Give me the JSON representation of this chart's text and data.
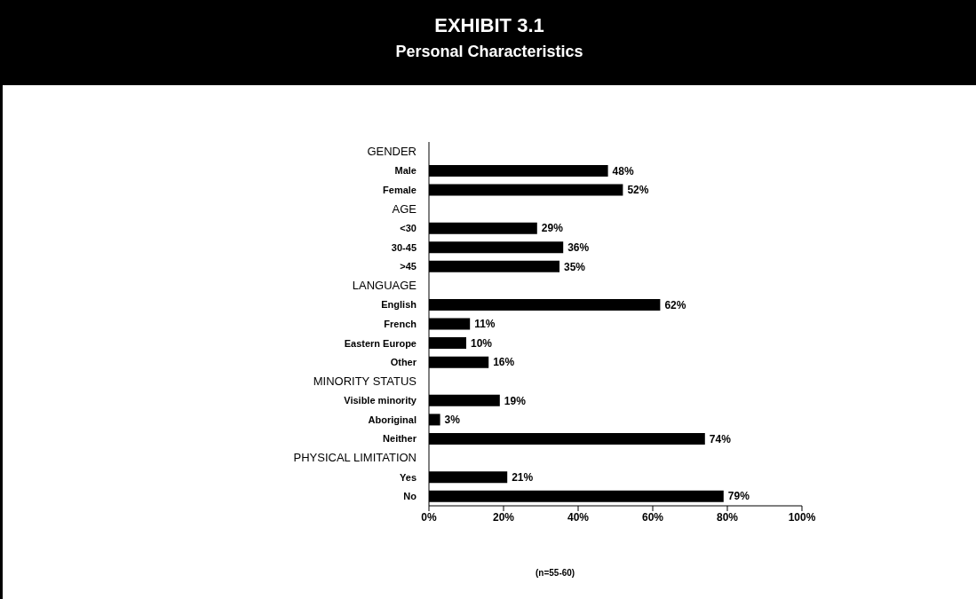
{
  "chart_data": {
    "type": "bar",
    "orientation": "horizontal",
    "title": "EXHIBIT 3.1",
    "subtitle": "Personal Characteristics",
    "categories": [
      "GENDER",
      "Male",
      "Female",
      "AGE",
      "<30",
      "30-45",
      ">45",
      "LANGUAGE",
      "English",
      "French",
      "Eastern Europe",
      "Other",
      "MINORITY STATUS",
      "Visible minority",
      "Aboriginal",
      "Neither",
      "PHYSICAL LIMITATION",
      "Yes",
      "No"
    ],
    "values": [
      null,
      48,
      52,
      null,
      29,
      36,
      35,
      null,
      62,
      11,
      10,
      16,
      null,
      19,
      3,
      74,
      null,
      21,
      79
    ],
    "value_labels": [
      null,
      "48%",
      "52%",
      null,
      "29%",
      "36%",
      "35%",
      null,
      "62%",
      "11%",
      "10%",
      "16%",
      null,
      "19%",
      "3%",
      "74%",
      null,
      "21%",
      "79%"
    ],
    "color": "#000000",
    "xlim": [
      0,
      100
    ],
    "xticks": [
      {
        "value": 0,
        "label": "0%"
      },
      {
        "value": 20,
        "label": "20%"
      },
      {
        "value": 40,
        "label": "40%"
      },
      {
        "value": 60,
        "label": "60%"
      },
      {
        "value": 80,
        "label": "80%"
      },
      {
        "value": 100,
        "label": "100%"
      }
    ],
    "grid": false,
    "legend": false,
    "annotations": [
      "(n=55-60)"
    ]
  }
}
